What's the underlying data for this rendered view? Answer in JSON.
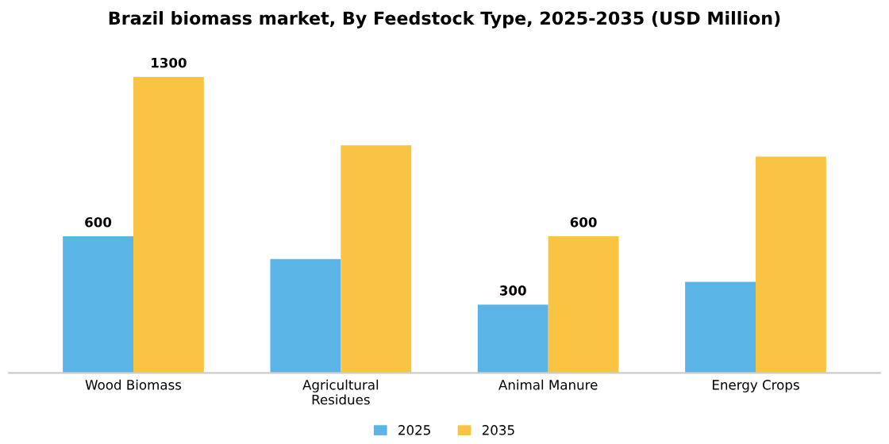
{
  "chart_data": {
    "type": "bar",
    "title": "Brazil biomass market, By Feedstock Type, 2025-2035 (USD Million)",
    "categories": [
      "Wood Biomass",
      "Agricultural\nResidues",
      "Animal Manure",
      "Energy Crops"
    ],
    "series": [
      {
        "name": "2025",
        "color": "#5ab4e5",
        "values": [
          600,
          500,
          300,
          400
        ],
        "value_labels": [
          "600",
          null,
          "300",
          null
        ]
      },
      {
        "name": "2035",
        "color": "#f9c344",
        "values": [
          1300,
          1000,
          600,
          950
        ],
        "value_labels": [
          "1300",
          null,
          "600",
          null
        ]
      }
    ],
    "legend": "bottom",
    "grid": false
  }
}
